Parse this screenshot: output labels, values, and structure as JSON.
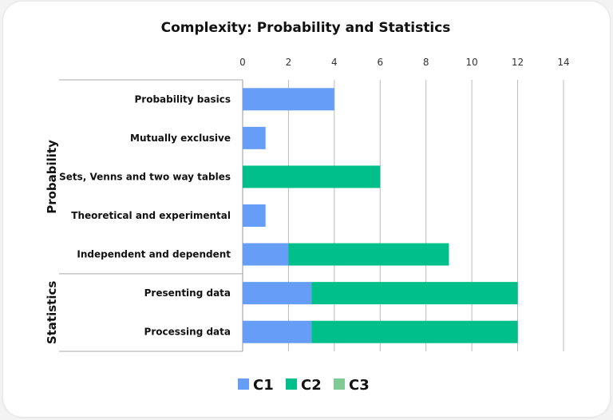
{
  "chart_data": {
    "type": "bar",
    "orientation": "horizontal",
    "stacked": true,
    "title": "Complexity: Probability and Statistics",
    "xlim": [
      0,
      14
    ],
    "x_ticks": [
      0,
      2,
      4,
      6,
      8,
      10,
      12,
      14
    ],
    "grid": true,
    "legend_position": "bottom",
    "groups": [
      {
        "name": "Probability",
        "categories": [
          "Probability basics",
          "Mutually exclusive",
          "Sets, Venns and two way tables",
          "Theoretical and experimental",
          "Independent and dependent"
        ]
      },
      {
        "name": "Statistics",
        "categories": [
          "Presenting data",
          "Processing data"
        ]
      }
    ],
    "categories": [
      "Probability basics",
      "Mutually exclusive",
      "Sets, Venns and two way tables",
      "Theoretical and experimental",
      "Independent and dependent",
      "Presenting data",
      "Processing data"
    ],
    "series": [
      {
        "name": "C1",
        "color": "#669df6",
        "values": [
          4,
          1,
          0,
          1,
          2,
          3,
          3
        ]
      },
      {
        "name": "C2",
        "color": "#00bf8a",
        "values": [
          0,
          0,
          6,
          0,
          7,
          9,
          9
        ]
      },
      {
        "name": "C3",
        "color": "#81c995",
        "values": [
          0,
          0,
          0,
          0,
          0,
          0,
          0
        ]
      }
    ]
  }
}
